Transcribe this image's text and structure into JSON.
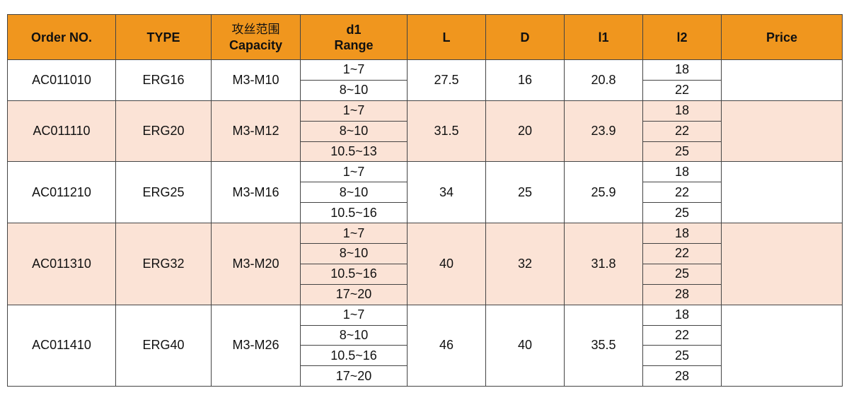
{
  "colors": {
    "header": "#F0961E",
    "alt_row": "#FBE3D6"
  },
  "headers": [
    {
      "lines": [
        "Order NO."
      ]
    },
    {
      "lines": [
        "TYPE"
      ]
    },
    {
      "cn": "攻丝范围",
      "lines": [
        "Capacity"
      ]
    },
    {
      "lines": [
        "d1",
        "Range"
      ]
    },
    {
      "lines": [
        "L"
      ]
    },
    {
      "lines": [
        "D"
      ]
    },
    {
      "lines": [
        "l1"
      ]
    },
    {
      "lines": [
        "l2"
      ]
    },
    {
      "lines": [
        "Price"
      ]
    }
  ],
  "rows": [
    {
      "order": "AC011010",
      "type": "ERG16",
      "capacity": "M3-M10",
      "d1": [
        "1~7",
        "8~10"
      ],
      "L": "27.5",
      "D": "16",
      "l1": "20.8",
      "l2": [
        "18",
        "22"
      ],
      "price": ""
    },
    {
      "order": "AC011110",
      "type": "ERG20",
      "capacity": "M3-M12",
      "d1": [
        "1~7",
        "8~10",
        "10.5~13"
      ],
      "L": "31.5",
      "D": "20",
      "l1": "23.9",
      "l2": [
        "18",
        "22",
        "25"
      ],
      "price": ""
    },
    {
      "order": "AC011210",
      "type": "ERG25",
      "capacity": "M3-M16",
      "d1": [
        "1~7",
        "8~10",
        "10.5~16"
      ],
      "L": "34",
      "D": "25",
      "l1": "25.9",
      "l2": [
        "18",
        "22",
        "25"
      ],
      "price": ""
    },
    {
      "order": "AC011310",
      "type": "ERG32",
      "capacity": "M3-M20",
      "d1": [
        "1~7",
        "8~10",
        "10.5~16",
        "17~20"
      ],
      "L": "40",
      "D": "32",
      "l1": "31.8",
      "l2": [
        "18",
        "22",
        "25",
        "28"
      ],
      "price": ""
    },
    {
      "order": "AC011410",
      "type": "ERG40",
      "capacity": "M3-M26",
      "d1": [
        "1~7",
        "8~10",
        "10.5~16",
        "17~20"
      ],
      "L": "46",
      "D": "40",
      "l1": "35.5",
      "l2": [
        "18",
        "22",
        "25",
        "28"
      ],
      "price": ""
    }
  ]
}
